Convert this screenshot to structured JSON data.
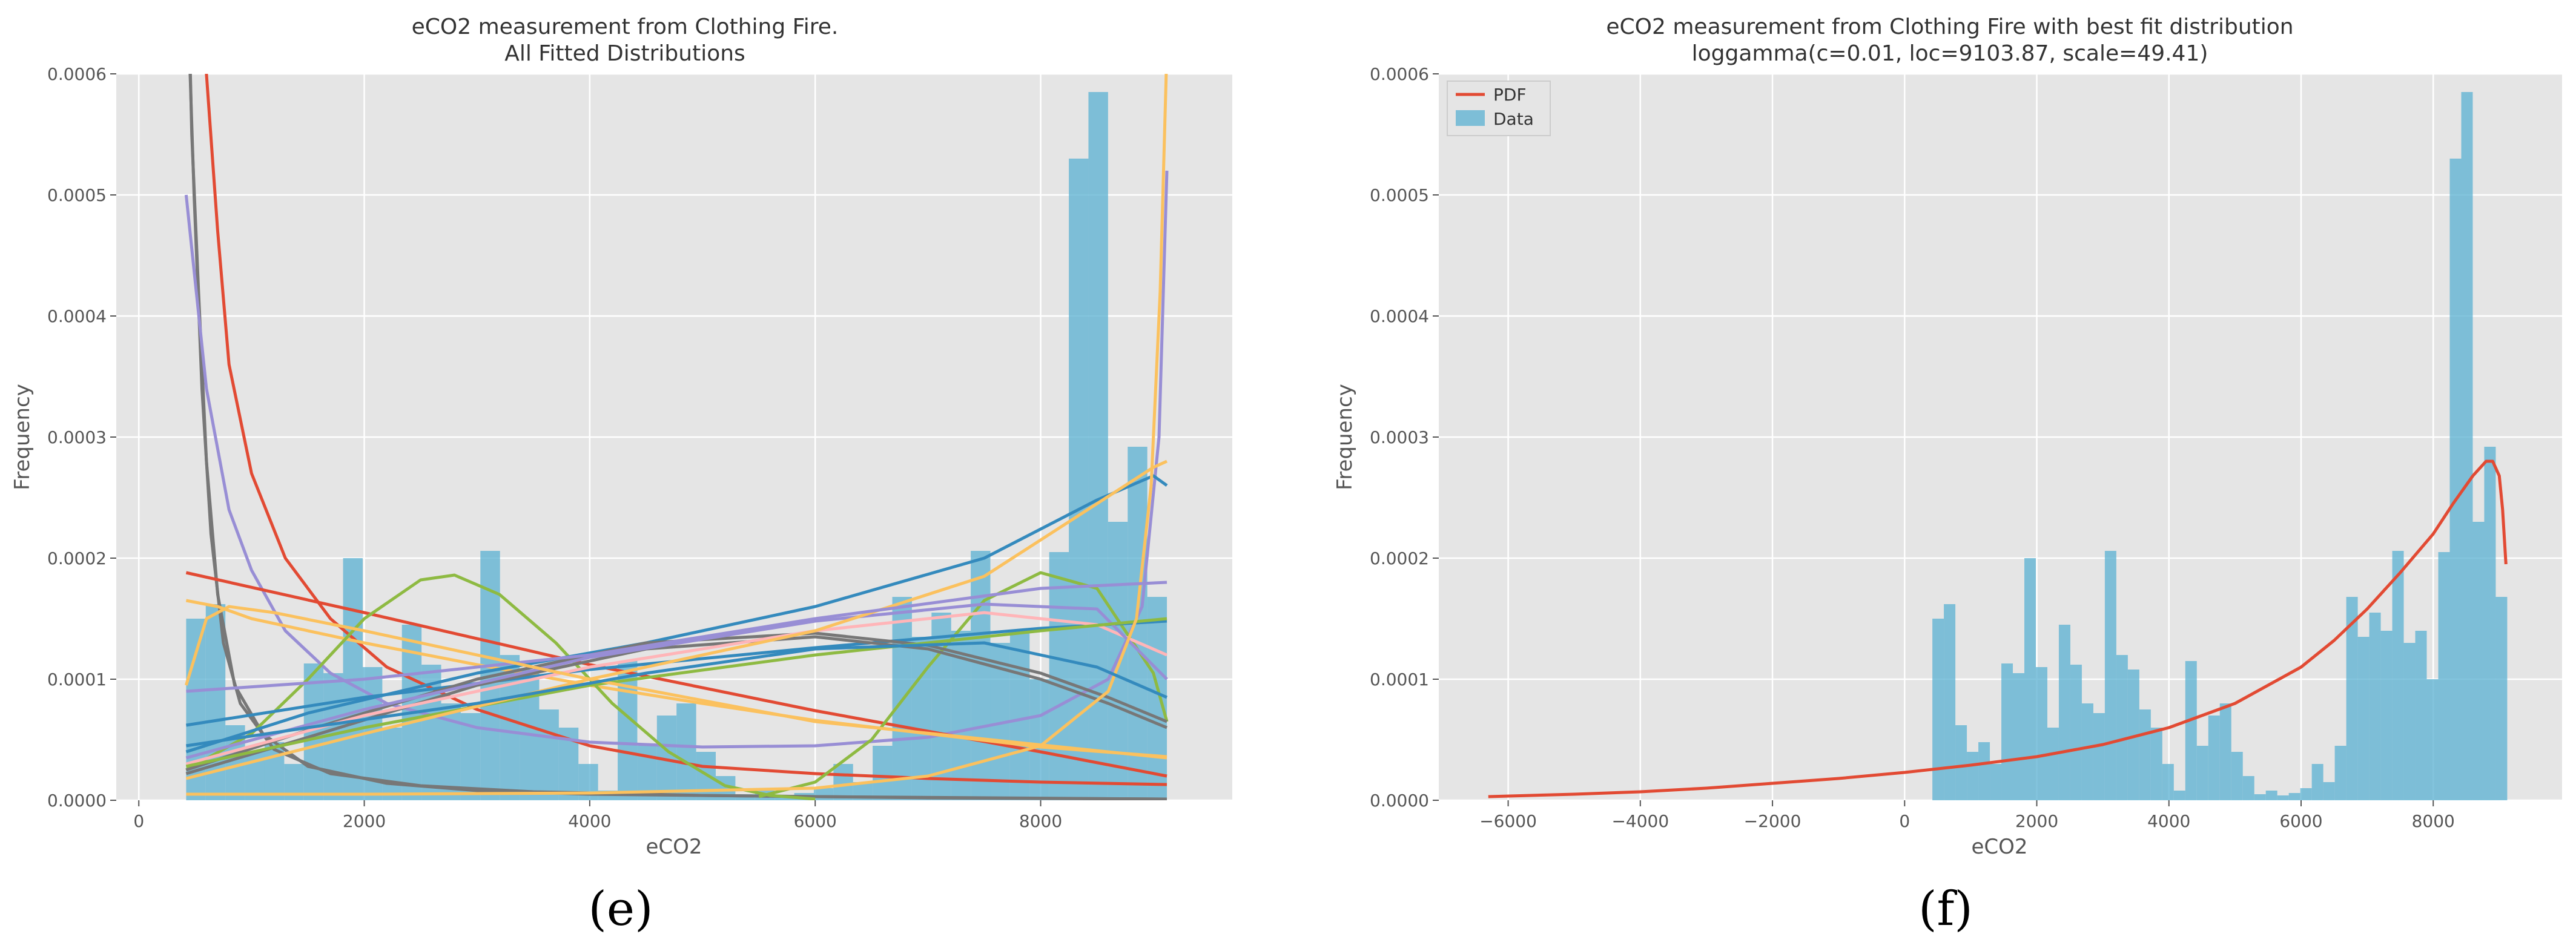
{
  "chart_data": [
    {
      "type": "histogram+line",
      "panel_label": "(e)",
      "title": "eCO2 measurement from Clothing Fire.",
      "subtitle": "All Fitted Distributions",
      "xlabel": "eCO2",
      "ylabel": "Frequency",
      "xlim": [
        -200,
        9700
      ],
      "ylim": [
        0,
        0.0006
      ],
      "xticks": [
        0,
        2000,
        4000,
        6000,
        8000
      ],
      "xtick_labels": [
        "0",
        "2000",
        "4000",
        "6000",
        "8000"
      ],
      "yticks": [
        0,
        0.0001,
        0.0002,
        0.0003,
        0.0004,
        0.0005,
        0.0006
      ],
      "ytick_labels": [
        "0.0000",
        "0.0001",
        "0.0002",
        "0.0003",
        "0.0004",
        "0.0005",
        "0.0006"
      ],
      "grid": true,
      "histogram": {
        "color": "#5ab0d2",
        "edges": [
          420,
          594,
          768,
          942,
          1116,
          1290,
          1464,
          1638,
          1812,
          1986,
          2160,
          2334,
          2508,
          2682,
          2856,
          3030,
          3204,
          3378,
          3552,
          3726,
          3900,
          4074,
          4248,
          4422,
          4596,
          4770,
          4944,
          5118,
          5292,
          5466,
          5640,
          5814,
          5988,
          6162,
          6336,
          6510,
          6684,
          6858,
          7032,
          7206,
          7380,
          7554,
          7728,
          7902,
          8076,
          8250,
          8424,
          8598,
          8772,
          8946,
          9120
        ],
        "values": [
          0.00015,
          0.000162,
          6.2e-05,
          4e-05,
          4.8e-05,
          3e-05,
          0.000113,
          0.000105,
          0.0002,
          0.00011,
          6e-05,
          0.000145,
          0.000112,
          8e-05,
          7.2e-05,
          0.000206,
          0.00012,
          0.000108,
          7.5e-05,
          6e-05,
          3e-05,
          8e-06,
          0.000115,
          4.5e-05,
          7e-05,
          8e-05,
          4e-05,
          2e-05,
          5e-06,
          8e-06,
          4e-06,
          6e-06,
          1e-05,
          3e-05,
          1.5e-05,
          4.5e-05,
          0.000168,
          0.000135,
          0.000155,
          0.00014,
          0.000206,
          0.00013,
          0.00014,
          0.0001,
          0.000205,
          0.00053,
          0.000585,
          0.00023,
          0.000292,
          0.000168
        ]
      },
      "fitted_curves": [
        {
          "color": "#e24a33",
          "x": [
            420,
            500,
            600,
            700,
            800,
            1000,
            1300,
            1700,
            2200,
            3000,
            4000,
            5000,
            6000,
            7000,
            8000,
            9120
          ],
          "y": [
            0.0008,
            0.0007,
            0.0006,
            0.00047,
            0.00036,
            0.00027,
            0.0002,
            0.00015,
            0.00011,
            7.5e-05,
            4.5e-05,
            2.8e-05,
            2.2e-05,
            1.8e-05,
            1.5e-05,
            1.3e-05
          ]
        },
        {
          "color": "#777777",
          "x": [
            420,
            470,
            530,
            600,
            700,
            850,
            1100,
            1500,
            2200,
            3000,
            4000,
            6000,
            9120
          ],
          "y": [
            0.00075,
            0.00055,
            0.00042,
            0.00028,
            0.00017,
            9.5e-05,
            5.5e-05,
            2.8e-05,
            1.4e-05,
            8e-06,
            5e-06,
            3e-06,
            1e-06
          ]
        },
        {
          "color": "#777777",
          "x": [
            420,
            490,
            560,
            640,
            750,
            900,
            1200,
            1700,
            2500,
            3500,
            5000,
            7000,
            9120
          ],
          "y": [
            0.0007,
            0.0005,
            0.00034,
            0.00022,
            0.00013,
            8e-05,
            4.2e-05,
            2.2e-05,
            1.2e-05,
            7e-06,
            4e-06,
            2e-06,
            1e-06
          ]
        },
        {
          "color": "#988ed5",
          "x": [
            420,
            600,
            800,
            1000,
            1300,
            1700,
            2200,
            3000,
            4000,
            5000,
            6000,
            7000,
            8000,
            8600,
            8900,
            9050,
            9120
          ],
          "y": [
            0.0005,
            0.00034,
            0.00024,
            0.00019,
            0.00014,
            0.000105,
            8e-05,
            6e-05,
            4.8e-05,
            4.4e-05,
            4.5e-05,
            5.2e-05,
            7e-05,
            0.0001,
            0.00016,
            0.0003,
            0.00052
          ]
        },
        {
          "color": "#e24a33",
          "x": [
            420,
            2000,
            4000,
            6000,
            8000,
            9120
          ],
          "y": [
            0.000188,
            0.000155,
            0.000112,
            7.4e-05,
            4e-05,
            2e-05
          ]
        },
        {
          "color": "#fbc15e",
          "x": [
            420,
            700,
            1000,
            2000,
            3000,
            4000,
            5000,
            6000,
            7000,
            8000,
            9120
          ],
          "y": [
            0.000165,
            0.00016,
            0.00015,
            0.00013,
            0.000112,
            9.5e-05,
            8e-05,
            6.6e-05,
            5.5e-05,
            4.4e-05,
            3.6e-05
          ]
        },
        {
          "color": "#8eba42",
          "x": [
            420,
            1000,
            1500,
            2000,
            2500,
            2800,
            3200,
            3700,
            4200,
            4700,
            5200,
            5600,
            6000
          ],
          "y": [
            2.5e-05,
            5.5e-05,
            0.0001,
            0.00015,
            0.000182,
            0.000186,
            0.00017,
            0.00013,
            8e-05,
            4e-05,
            1.2e-05,
            4e-06,
            1e-06
          ]
        },
        {
          "color": "#8eba42",
          "x": [
            5500,
            6000,
            6500,
            7000,
            7500,
            8000,
            8500,
            9000,
            9120
          ],
          "y": [
            3e-06,
            1.5e-05,
            5e-05,
            0.00011,
            0.000165,
            0.000188,
            0.000175,
            0.000105,
            6.5e-05
          ]
        },
        {
          "color": "#348abd",
          "x": [
            420,
            1500,
            3000,
            4500,
            6000,
            7500,
            8500,
            9000,
            9120
          ],
          "y": [
            4e-05,
            7.2e-05,
            0.000105,
            0.00013,
            0.00016,
            0.0002,
            0.000248,
            0.000268,
            0.00026
          ]
        },
        {
          "color": "#348abd",
          "x": [
            420,
            2000,
            4000,
            6000,
            8000,
            9120
          ],
          "y": [
            6.2e-05,
            8.5e-05,
            0.000108,
            0.000126,
            0.000142,
            0.000148
          ]
        },
        {
          "color": "#777777",
          "x": [
            420,
            1500,
            3000,
            4500,
            6000,
            7000,
            8000,
            8600,
            9120
          ],
          "y": [
            2.5e-05,
            5.8e-05,
            0.0001,
            0.00013,
            0.000138,
            0.000128,
            0.000105,
            8.5e-05,
            6.5e-05
          ]
        },
        {
          "color": "#777777",
          "x": [
            420,
            1500,
            3000,
            4500,
            6000,
            7000,
            8000,
            8600,
            9120
          ],
          "y": [
            2.2e-05,
            5.2e-05,
            9.5e-05,
            0.000125,
            0.000135,
            0.000125,
            0.0001,
            8e-05,
            6e-05
          ]
        },
        {
          "color": "#ffb5b8",
          "x": [
            420,
            2000,
            4000,
            6000,
            7500,
            8500,
            9120
          ],
          "y": [
            3e-05,
            7e-05,
            0.00011,
            0.00014,
            0.000155,
            0.000145,
            0.00012
          ]
        },
        {
          "color": "#988ed5",
          "x": [
            420,
            2000,
            4000,
            6000,
            7500,
            8500,
            9120
          ],
          "y": [
            3.5e-05,
            7.5e-05,
            0.000118,
            0.000148,
            0.000162,
            0.000158,
            0.0001
          ]
        },
        {
          "color": "#8eba42",
          "x": [
            420,
            2000,
            4000,
            6000,
            8000,
            9120
          ],
          "y": [
            2.8e-05,
            6e-05,
            9.5e-05,
            0.00012,
            0.00014,
            0.00015
          ]
        },
        {
          "color": "#fbc15e",
          "x": [
            420,
            2000,
            4000,
            6000,
            7500,
            8500,
            9000,
            9120
          ],
          "y": [
            1.8e-05,
            5.5e-05,
            0.0001,
            0.00014,
            0.000185,
            0.000245,
            0.000275,
            0.00028
          ]
        },
        {
          "color": "#fbc15e",
          "x": [
            420,
            2000,
            4000,
            6000,
            7000,
            8000,
            8600,
            8850,
            8980,
            9060,
            9120
          ],
          "y": [
            5e-06,
            5e-06,
            6e-06,
            1e-05,
            2e-05,
            4.5e-05,
            9e-05,
            0.00015,
            0.00026,
            0.00042,
            0.00062
          ]
        },
        {
          "color": "#988ed5",
          "x": [
            420,
            2000,
            4000,
            6000,
            8000,
            9120
          ],
          "y": [
            9e-05,
            0.0001,
            0.00012,
            0.00015,
            0.000175,
            0.00018
          ]
        },
        {
          "color": "#fbc15e",
          "x": [
            420,
            600,
            800,
            1200,
            2000,
            4000,
            6000,
            9120
          ],
          "y": [
            9.5e-05,
            0.00015,
            0.00016,
            0.000155,
            0.00014,
            0.0001,
            6.5e-05,
            3.5e-05
          ]
        },
        {
          "color": "#348abd",
          "x": [
            420,
            1500,
            3000,
            4500,
            6000,
            7500,
            8500,
            9120
          ],
          "y": [
            4.5e-05,
            6e-05,
            8e-05,
            0.000105,
            0.000125,
            0.00013,
            0.00011,
            8.5e-05
          ]
        }
      ]
    },
    {
      "type": "histogram+line",
      "panel_label": "(f)",
      "title": "eCO2 measurement from Clothing Fire with best fit distribution",
      "subtitle": "loggamma(c=0.01, loc=9103.87, scale=49.41)",
      "xlabel": "eCO2",
      "ylabel": "Frequency",
      "xlim": [
        -7050,
        9950
      ],
      "ylim": [
        0,
        0.0006
      ],
      "xticks": [
        -6000,
        -4000,
        -2000,
        0,
        2000,
        4000,
        6000,
        8000
      ],
      "xtick_labels": [
        "−6000",
        "−4000",
        "−2000",
        "0",
        "2000",
        "4000",
        "6000",
        "8000"
      ],
      "yticks": [
        0,
        0.0001,
        0.0002,
        0.0003,
        0.0004,
        0.0005,
        0.0006
      ],
      "ytick_labels": [
        "0.0000",
        "0.0001",
        "0.0002",
        "0.0003",
        "0.0004",
        "0.0005",
        "0.0006"
      ],
      "grid": true,
      "legend": {
        "placement": "top-left",
        "entries": [
          {
            "label": "PDF",
            "color": "#e24a33",
            "kind": "line"
          },
          {
            "label": "Data",
            "color": "#5ab0d2",
            "kind": "patch"
          }
        ]
      },
      "histogram": {
        "color": "#5ab0d2",
        "edges": [
          420,
          594,
          768,
          942,
          1116,
          1290,
          1464,
          1638,
          1812,
          1986,
          2160,
          2334,
          2508,
          2682,
          2856,
          3030,
          3204,
          3378,
          3552,
          3726,
          3900,
          4074,
          4248,
          4422,
          4596,
          4770,
          4944,
          5118,
          5292,
          5466,
          5640,
          5814,
          5988,
          6162,
          6336,
          6510,
          6684,
          6858,
          7032,
          7206,
          7380,
          7554,
          7728,
          7902,
          8076,
          8250,
          8424,
          8598,
          8772,
          8946,
          9120
        ],
        "values": [
          0.00015,
          0.000162,
          6.2e-05,
          4e-05,
          4.8e-05,
          3e-05,
          0.000113,
          0.000105,
          0.0002,
          0.00011,
          6e-05,
          0.000145,
          0.000112,
          8e-05,
          7.2e-05,
          0.000206,
          0.00012,
          0.000108,
          7.5e-05,
          6e-05,
          3e-05,
          8e-06,
          0.000115,
          4.5e-05,
          7e-05,
          8e-05,
          4e-05,
          2e-05,
          5e-06,
          8e-06,
          4e-06,
          6e-06,
          1e-05,
          3e-05,
          1.5e-05,
          4.5e-05,
          0.000168,
          0.000135,
          0.000155,
          0.00014,
          0.000206,
          0.00013,
          0.00014,
          0.0001,
          0.000205,
          0.00053,
          0.000585,
          0.00023,
          0.000292,
          0.000168
        ]
      },
      "pdf_curve": {
        "color": "#e24a33",
        "x": [
          -6300,
          -5000,
          -4000,
          -3000,
          -2000,
          -1000,
          0,
          1000,
          2000,
          3000,
          4000,
          5000,
          6000,
          6500,
          7000,
          7500,
          8000,
          8300,
          8600,
          8800,
          8900,
          9000,
          9050,
          9100
        ],
        "y": [
          3e-06,
          5e-06,
          7e-06,
          1e-05,
          1.4e-05,
          1.8e-05,
          2.3e-05,
          2.9e-05,
          3.6e-05,
          4.6e-05,
          6e-05,
          8e-05,
          0.00011,
          0.000132,
          0.000158,
          0.000188,
          0.00022,
          0.000245,
          0.000268,
          0.00028,
          0.00028,
          0.000268,
          0.00024,
          0.000195
        ]
      }
    }
  ]
}
